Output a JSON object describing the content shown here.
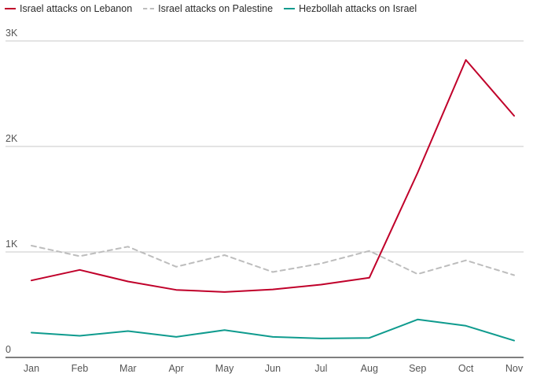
{
  "chart_data": {
    "type": "line",
    "categories": [
      "Jan",
      "Feb",
      "Mar",
      "Apr",
      "May",
      "Jun",
      "Jul",
      "Aug",
      "Sep",
      "Oct",
      "Nov"
    ],
    "ylim": [
      0,
      3000
    ],
    "yticks": [
      0,
      1000,
      2000,
      3000
    ],
    "ytick_labels": [
      "0",
      "1K",
      "2K",
      "3K"
    ],
    "grid": true,
    "legend_position": "top-left",
    "series": [
      {
        "name": "Israel attacks on Lebanon",
        "color": "#c0002a",
        "dash": "solid",
        "values": [
          730,
          830,
          720,
          640,
          620,
          645,
          690,
          755,
          1750,
          2820,
          2290
        ]
      },
      {
        "name": "Israel attacks on Palestine",
        "color": "#bdbdbd",
        "dash": "dashed",
        "values": [
          1060,
          960,
          1050,
          860,
          970,
          810,
          890,
          1010,
          790,
          920,
          780
        ]
      },
      {
        "name": "Hezbollah attacks on Israel",
        "color": "#0f9b8e",
        "dash": "solid",
        "values": [
          235,
          205,
          250,
          195,
          260,
          195,
          180,
          185,
          360,
          300,
          160
        ]
      }
    ]
  }
}
